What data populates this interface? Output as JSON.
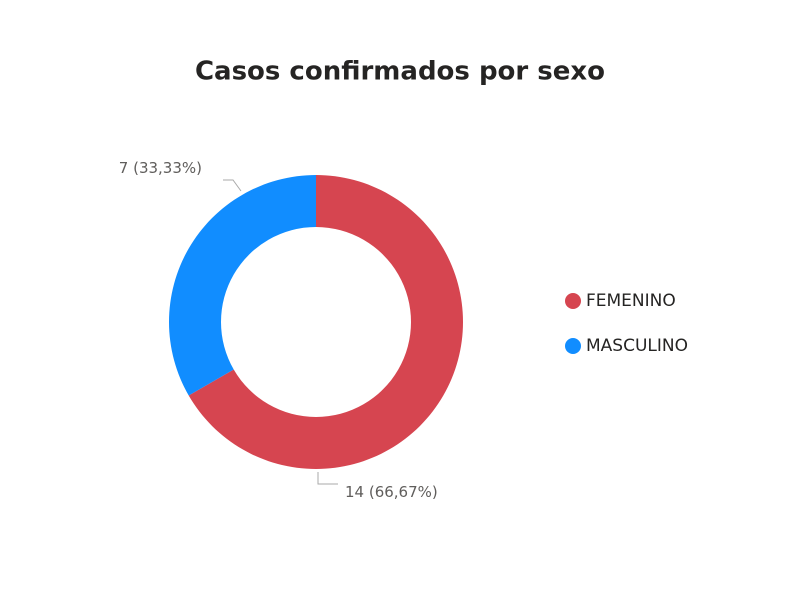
{
  "chart_data": {
    "type": "donut",
    "title": "Casos confirmados por sexo",
    "categories": [
      "FEMENINO",
      "MASCULINO"
    ],
    "values": [
      14,
      7
    ],
    "value_labels": [
      "14 (66,67%)",
      "7 (33,33%)"
    ],
    "colors": [
      "#d64550",
      "#118dff"
    ],
    "legend": "right"
  }
}
